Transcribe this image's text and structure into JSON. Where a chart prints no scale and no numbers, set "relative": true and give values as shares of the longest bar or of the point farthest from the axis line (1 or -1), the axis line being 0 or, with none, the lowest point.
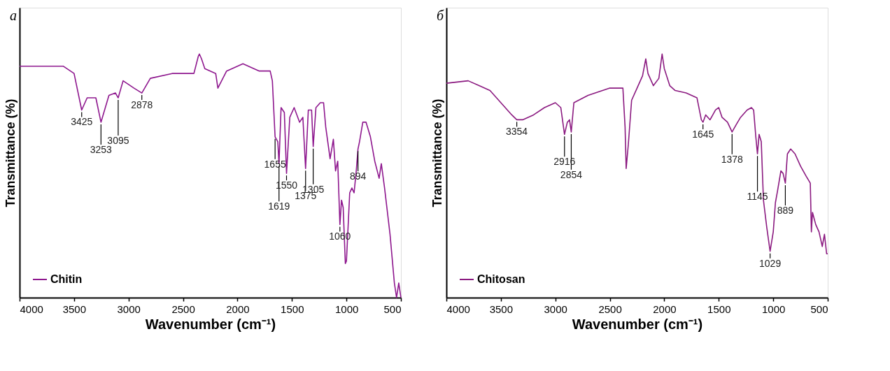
{
  "chart_data": [
    {
      "type": "line",
      "title": "а",
      "xlabel": "Wavenumber (cm⁻¹)",
      "ylabel": "Transmittance (%)",
      "relative": true,
      "xlim": [
        4000,
        500
      ],
      "xticks": [
        4000,
        3500,
        3000,
        2500,
        2000,
        1500,
        1000,
        500
      ],
      "grid": false,
      "legend": "bottom left",
      "x": [
        4000,
        3800,
        3600,
        3500,
        3430,
        3380,
        3300,
        3253,
        3180,
        3120,
        3095,
        3050,
        2950,
        2878,
        2800,
        2600,
        2400,
        2360,
        2350,
        2330,
        2300,
        2200,
        2180,
        2100,
        1950,
        1800,
        1700,
        1680,
        1655,
        1630,
        1619,
        1600,
        1570,
        1550,
        1520,
        1480,
        1430,
        1400,
        1375,
        1350,
        1320,
        1305,
        1280,
        1240,
        1210,
        1190,
        1150,
        1120,
        1100,
        1080,
        1060,
        1045,
        1030,
        1010,
        1000,
        970,
        950,
        930,
        910,
        894,
        880,
        850,
        820,
        780,
        740,
        700,
        680,
        650,
        600,
        560,
        540,
        520,
        500
      ],
      "series": [
        {
          "name": "Chitin",
          "color": "#8e178e",
          "values": [
            0.95,
            0.95,
            0.95,
            0.92,
            0.77,
            0.82,
            0.82,
            0.72,
            0.83,
            0.84,
            0.82,
            0.89,
            0.86,
            0.84,
            0.9,
            0.92,
            0.92,
            0.99,
            1.0,
            0.98,
            0.94,
            0.92,
            0.86,
            0.93,
            0.96,
            0.93,
            0.93,
            0.89,
            0.66,
            0.64,
            0.55,
            0.78,
            0.76,
            0.51,
            0.74,
            0.78,
            0.72,
            0.74,
            0.53,
            0.77,
            0.77,
            0.62,
            0.78,
            0.8,
            0.8,
            0.7,
            0.57,
            0.65,
            0.52,
            0.56,
            0.3,
            0.4,
            0.37,
            0.14,
            0.15,
            0.43,
            0.45,
            0.43,
            0.52,
            0.61,
            0.64,
            0.72,
            0.72,
            0.66,
            0.56,
            0.49,
            0.55,
            0.45,
            0.26,
            0.06,
            0.0,
            0.06,
            0.0
          ]
        }
      ],
      "annotations": [
        {
          "text": "3425",
          "x": 3430,
          "y": 0.77
        },
        {
          "text": "3253",
          "x": 3253,
          "y": 0.72
        },
        {
          "text": "3095",
          "x": 3095,
          "y": 0.82
        },
        {
          "text": "2878",
          "x": 2878,
          "y": 0.84
        },
        {
          "text": "1655",
          "x": 1655,
          "y": 0.66
        },
        {
          "text": "1619",
          "x": 1619,
          "y": 0.55
        },
        {
          "text": "1550",
          "x": 1550,
          "y": 0.51
        },
        {
          "text": "1375",
          "x": 1375,
          "y": 0.53
        },
        {
          "text": "1305",
          "x": 1305,
          "y": 0.62
        },
        {
          "text": "1060",
          "x": 1060,
          "y": 0.3
        },
        {
          "text": "894",
          "x": 894,
          "y": 0.61
        }
      ]
    },
    {
      "type": "line",
      "title": "б",
      "xlabel": "Wavenumber (cm⁻¹)",
      "ylabel": "Transmittance (%)",
      "relative": true,
      "xlim": [
        4000,
        500
      ],
      "xticks": [
        4000,
        3500,
        3000,
        2500,
        2000,
        1500,
        1000,
        500
      ],
      "grid": false,
      "legend": "bottom left",
      "x": [
        4000,
        3800,
        3700,
        3600,
        3500,
        3400,
        3354,
        3300,
        3200,
        3100,
        3000,
        2950,
        2916,
        2890,
        2870,
        2854,
        2830,
        2700,
        2500,
        2380,
        2360,
        2350,
        2330,
        2300,
        2250,
        2200,
        2170,
        2150,
        2100,
        2050,
        2020,
        2000,
        1950,
        1900,
        1800,
        1700,
        1660,
        1645,
        1620,
        1580,
        1530,
        1500,
        1470,
        1420,
        1378,
        1340,
        1300,
        1240,
        1200,
        1180,
        1160,
        1145,
        1130,
        1110,
        1090,
        1060,
        1029,
        1000,
        980,
        960,
        930,
        910,
        889,
        870,
        840,
        800,
        750,
        700,
        660,
        650,
        640,
        610,
        580,
        550,
        530,
        510,
        500
      ],
      "series": [
        {
          "name": "Chitosan",
          "color": "#8b1a80",
          "values": [
            0.88,
            0.89,
            0.87,
            0.85,
            0.8,
            0.75,
            0.73,
            0.73,
            0.75,
            0.78,
            0.8,
            0.78,
            0.67,
            0.72,
            0.73,
            0.68,
            0.8,
            0.83,
            0.86,
            0.86,
            0.7,
            0.53,
            0.63,
            0.81,
            0.86,
            0.91,
            0.98,
            0.92,
            0.87,
            0.9,
            1.0,
            0.94,
            0.87,
            0.85,
            0.84,
            0.82,
            0.73,
            0.72,
            0.75,
            0.73,
            0.77,
            0.78,
            0.74,
            0.72,
            0.68,
            0.71,
            0.74,
            0.77,
            0.78,
            0.77,
            0.66,
            0.59,
            0.67,
            0.64,
            0.4,
            0.29,
            0.19,
            0.27,
            0.39,
            0.44,
            0.52,
            0.51,
            0.47,
            0.59,
            0.61,
            0.59,
            0.54,
            0.5,
            0.47,
            0.27,
            0.35,
            0.3,
            0.27,
            0.21,
            0.26,
            0.18,
            0.18
          ]
        }
      ],
      "annotations": [
        {
          "text": "3354",
          "x": 3354,
          "y": 0.73
        },
        {
          "text": "2916",
          "x": 2916,
          "y": 0.67
        },
        {
          "text": "2854",
          "x": 2854,
          "y": 0.68
        },
        {
          "text": "1645",
          "x": 1645,
          "y": 0.72
        },
        {
          "text": "1378",
          "x": 1378,
          "y": 0.68
        },
        {
          "text": "1145",
          "x": 1145,
          "y": 0.59
        },
        {
          "text": "1029",
          "x": 1029,
          "y": 0.19
        },
        {
          "text": "889",
          "x": 889,
          "y": 0.47
        }
      ]
    }
  ]
}
